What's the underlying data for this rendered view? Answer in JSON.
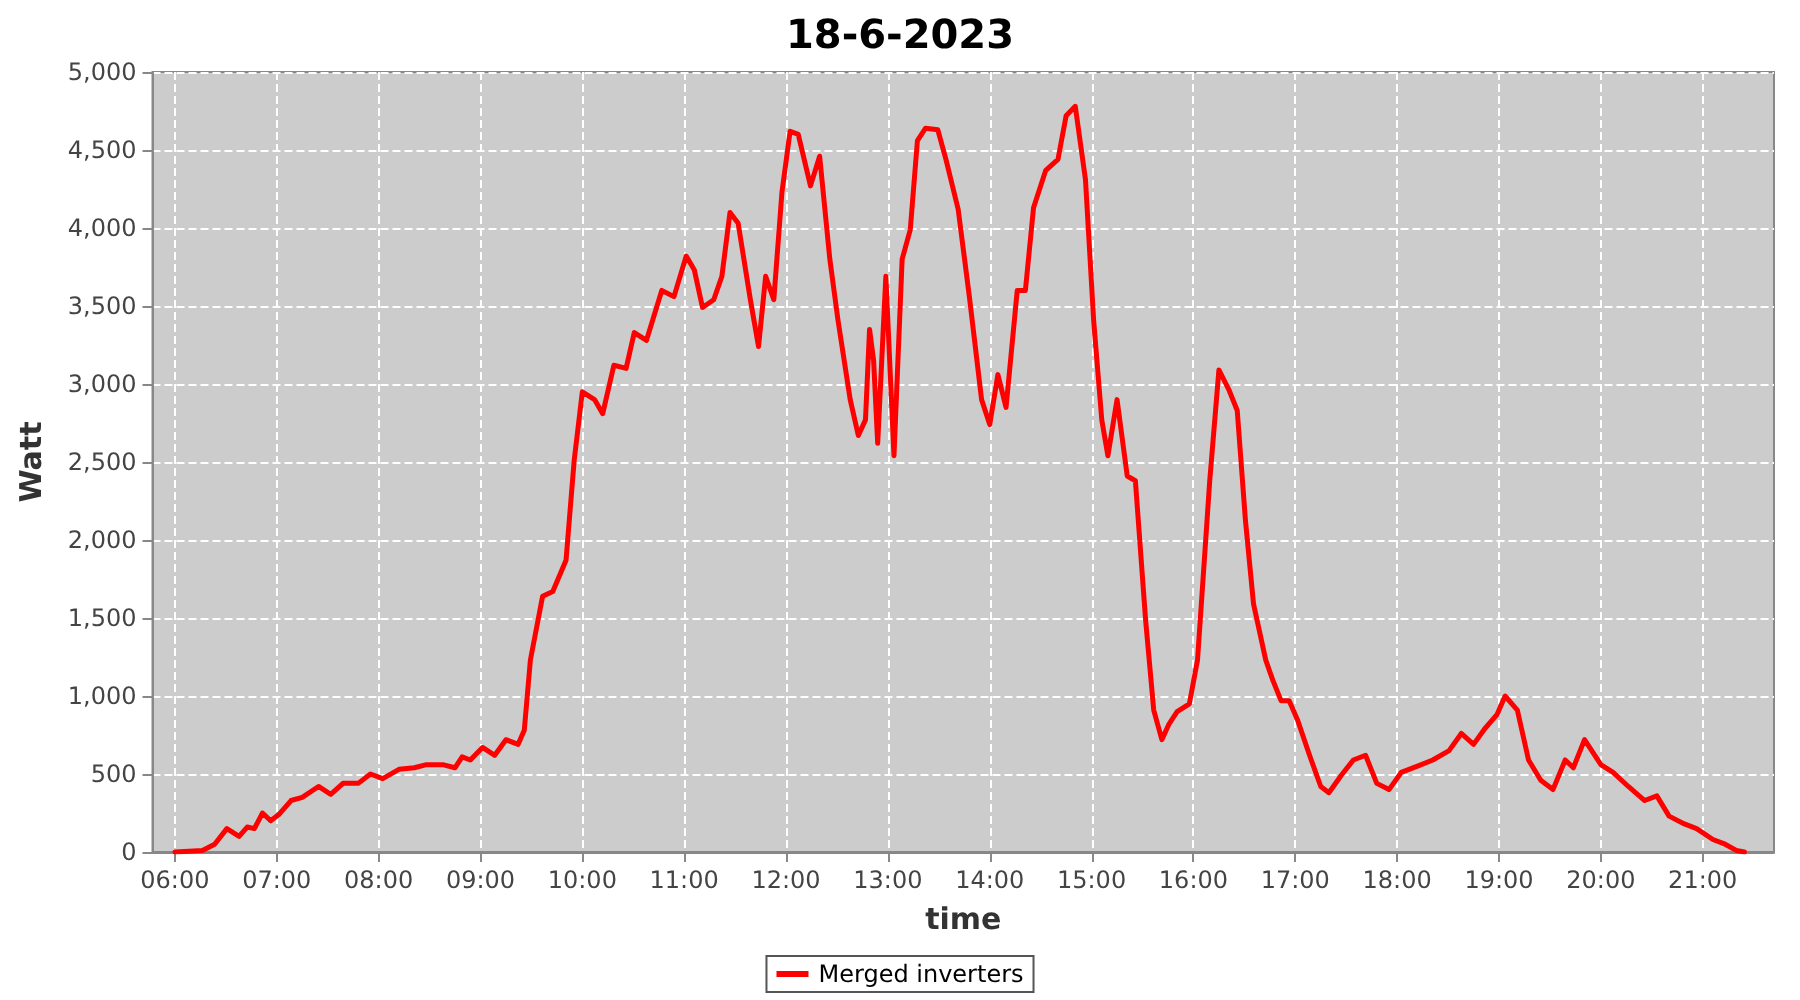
{
  "chart_data": {
    "type": "line",
    "title": "18-6-2023",
    "xlabel": "time",
    "ylabel": "Watt",
    "x": [
      6.0,
      6.27,
      6.39,
      6.51,
      6.63,
      6.71,
      6.78,
      6.86,
      6.94,
      7.02,
      7.14,
      7.25,
      7.41,
      7.53,
      7.65,
      7.8,
      7.92,
      8.04,
      8.2,
      8.35,
      8.47,
      8.63,
      8.75,
      8.82,
      8.9,
      9.02,
      9.14,
      9.25,
      9.37,
      9.43,
      9.49,
      9.61,
      9.71,
      9.84,
      9.92,
      10.0,
      10.12,
      10.2,
      10.31,
      10.43,
      10.51,
      10.63,
      10.78,
      10.9,
      11.02,
      11.1,
      11.18,
      11.29,
      11.37,
      11.45,
      11.53,
      11.65,
      11.73,
      11.8,
      11.88,
      11.96,
      12.04,
      12.12,
      12.24,
      12.33,
      12.43,
      12.51,
      12.63,
      12.71,
      12.78,
      12.82,
      12.86,
      12.9,
      12.98,
      13.06,
      13.14,
      13.22,
      13.29,
      13.37,
      13.49,
      13.57,
      13.69,
      13.8,
      13.92,
      14.0,
      14.08,
      14.16,
      14.27,
      14.35,
      14.43,
      14.55,
      14.67,
      14.75,
      14.84,
      14.94,
      15.02,
      15.1,
      15.16,
      15.25,
      15.35,
      15.43,
      15.53,
      15.61,
      15.69,
      15.76,
      15.84,
      15.96,
      16.04,
      16.16,
      16.25,
      16.35,
      16.43,
      16.51,
      16.59,
      16.71,
      16.78,
      16.86,
      16.94,
      17.02,
      17.14,
      17.25,
      17.33,
      17.45,
      17.57,
      17.69,
      17.8,
      17.92,
      18.04,
      18.2,
      18.35,
      18.51,
      18.63,
      18.75,
      18.86,
      18.98,
      19.06,
      19.18,
      19.29,
      19.41,
      19.53,
      19.65,
      19.73,
      19.84,
      20.0,
      20.12,
      20.27,
      20.43,
      20.55,
      20.67,
      20.82,
      20.94,
      21.1,
      21.22,
      21.33,
      21.41
    ],
    "series": [
      {
        "name": "Merged inverters",
        "color": "#ff0000",
        "values": [
          0,
          10,
          50,
          150,
          100,
          160,
          150,
          250,
          200,
          240,
          330,
          350,
          420,
          370,
          440,
          440,
          500,
          470,
          530,
          540,
          560,
          560,
          540,
          610,
          590,
          670,
          620,
          720,
          690,
          780,
          1230,
          1640,
          1670,
          1870,
          2510,
          2950,
          2900,
          2810,
          3120,
          3100,
          3330,
          3280,
          3600,
          3560,
          3820,
          3730,
          3490,
          3540,
          3690,
          4100,
          4030,
          3540,
          3240,
          3690,
          3540,
          4230,
          4620,
          4600,
          4270,
          4460,
          3800,
          3410,
          2900,
          2670,
          2770,
          3350,
          3150,
          2620,
          3690,
          2540,
          3800,
          3990,
          4560,
          4640,
          4630,
          4440,
          4120,
          3560,
          2900,
          2740,
          3060,
          2850,
          3600,
          3600,
          4130,
          4370,
          4440,
          4720,
          4780,
          4310,
          3410,
          2770,
          2540,
          2900,
          2410,
          2380,
          1490,
          910,
          720,
          820,
          900,
          950,
          1230,
          2380,
          3090,
          2960,
          2830,
          2130,
          1590,
          1230,
          1100,
          970,
          970,
          850,
          620,
          420,
          380,
          490,
          590,
          620,
          440,
          400,
          510,
          550,
          590,
          650,
          760,
          690,
          790,
          880,
          1000,
          910,
          590,
          460,
          400,
          590,
          540,
          720,
          560,
          510,
          420,
          330,
          360,
          230,
          180,
          150,
          80,
          50,
          10,
          0
        ]
      }
    ],
    "xlim": [
      5.78,
      21.7
    ],
    "xticks": [
      {
        "value": 6,
        "label": "06:00"
      },
      {
        "value": 7,
        "label": "07:00"
      },
      {
        "value": 8,
        "label": "08:00"
      },
      {
        "value": 9,
        "label": "09:00"
      },
      {
        "value": 10,
        "label": "10:00"
      },
      {
        "value": 11,
        "label": "11:00"
      },
      {
        "value": 12,
        "label": "12:00"
      },
      {
        "value": 13,
        "label": "13:00"
      },
      {
        "value": 14,
        "label": "14:00"
      },
      {
        "value": 15,
        "label": "15:00"
      },
      {
        "value": 16,
        "label": "16:00"
      },
      {
        "value": 17,
        "label": "17:00"
      },
      {
        "value": 18,
        "label": "18:00"
      },
      {
        "value": 19,
        "label": "19:00"
      },
      {
        "value": 20,
        "label": "20:00"
      },
      {
        "value": 21,
        "label": "21:00"
      }
    ],
    "ylim": [
      0,
      5000
    ],
    "yticks": [
      0,
      500,
      {
        "value": 1000,
        "label": "1,000"
      },
      {
        "value": 1500,
        "label": "1,500"
      },
      {
        "value": 2000,
        "label": "2,000"
      },
      {
        "value": 2500,
        "label": "2,500"
      },
      {
        "value": 3000,
        "label": "3,000"
      },
      {
        "value": 3500,
        "label": "3,500"
      },
      {
        "value": 4000,
        "label": "4,000"
      },
      {
        "value": 4500,
        "label": "4,500"
      },
      {
        "value": 5000,
        "label": "5,000"
      }
    ],
    "grid": true,
    "legend": "bottom",
    "marker": "none",
    "line_style": "solid"
  }
}
